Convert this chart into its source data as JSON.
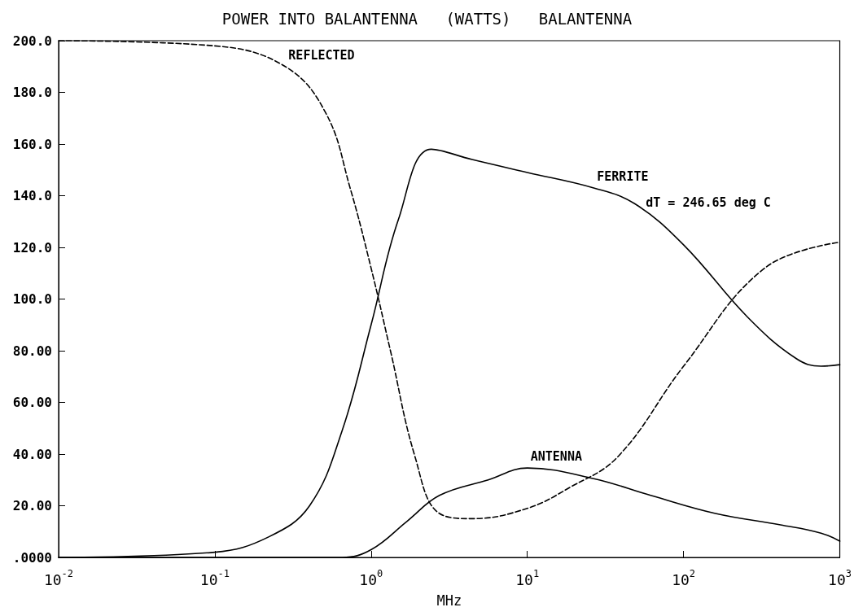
{
  "chart_data": {
    "type": "line",
    "title": "POWER INTO BALANTENNA   (WATTS)   BALANTENNA",
    "xlabel": "MHz",
    "log": "x",
    "grid": false,
    "marker": "none",
    "xlim": [
      0.01,
      1000
    ],
    "xticks": [
      {
        "value": 0.01,
        "label": "10$^{-2}$"
      },
      {
        "value": 0.1,
        "label": "10$^{-1}$"
      },
      {
        "value": 1,
        "label": "10$^{0}$"
      },
      {
        "value": 10,
        "label": "10$^{1}$"
      },
      {
        "value": 100,
        "label": "10$^{2}$"
      },
      {
        "value": 1000,
        "label": "10$^{3}$"
      }
    ],
    "ylim": [
      0,
      200
    ],
    "yticks": [
      {
        "value": 0,
        "label": ".0000"
      },
      {
        "value": 20,
        "label": "20.00"
      },
      {
        "value": 40,
        "label": "40.00"
      },
      {
        "value": 60,
        "label": "60.00"
      },
      {
        "value": 80,
        "label": "80.00"
      },
      {
        "value": 100,
        "label": "100.0"
      },
      {
        "value": 120,
        "label": "120.0"
      },
      {
        "value": 140,
        "label": "140.0"
      },
      {
        "value": 160,
        "label": "160.0"
      },
      {
        "value": 180,
        "label": "180.0"
      },
      {
        "value": 200,
        "label": "200.0"
      }
    ],
    "series": [
      {
        "color": "#000000",
        "line_style": "dashed",
        "x": [
          0.01,
          0.1,
          0.282,
          0.513,
          0.734,
          1,
          1.33,
          1.91,
          2.74,
          4.43,
          10,
          18.6,
          38,
          100,
          331,
          1000
        ],
        "values": [
          200,
          198,
          190,
          172,
          143,
          112,
          80,
          39,
          17,
          15,
          19,
          27,
          39,
          74,
          112,
          122
        ]
      },
      {
        "color": "#000000",
        "line_style": "solid",
        "x": [
          0.01,
          0.1,
          0.222,
          0.404,
          0.652,
          1,
          1.5,
          2.43,
          4.43,
          10,
          26.6,
          48.4,
          100,
          257,
          525,
          759,
          1000
        ],
        "values": [
          0,
          2,
          8,
          20,
          49,
          90,
          131,
          158,
          154,
          149,
          143,
          137,
          121,
          93,
          77,
          74,
          74.6
        ]
      },
      {
        "color": "#000000",
        "line_style": "solid",
        "x": [
          0.01,
          0.1,
          0.652,
          1,
          1.7,
          2.74,
          5.62,
          10,
          26.6,
          61.6,
          160,
          417,
          759,
          1000
        ],
        "values": [
          0,
          0,
          0,
          3,
          14,
          24,
          30,
          34.6,
          30.5,
          24,
          17,
          12.6,
          9.4,
          6.3
        ]
      }
    ],
    "annotations": [
      {
        "text": "REFLECTED",
        "x": 0.282,
        "y": 190
      },
      {
        "text": "FERRITE",
        "x": 26.6,
        "y": 143
      },
      "dT = 246.65 deg C",
      {
        "text": "ANTENNA",
        "x": 10,
        "y": 34.6
      }
    ]
  }
}
